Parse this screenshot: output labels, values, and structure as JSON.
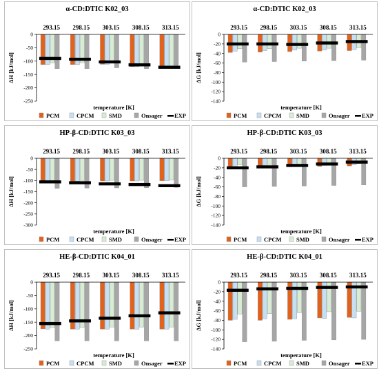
{
  "legend": [
    "PCM",
    "CPCM",
    "SMD",
    "Onsager",
    "EXP"
  ],
  "colors": {
    "PCM": "#e1621c",
    "CPCM": "#c6dff2",
    "SMD": "#d7ecd3",
    "Onsager": "#a6a6a6",
    "EXP": "#000000"
  },
  "chart_data": [
    {
      "type": "bar",
      "title": "α-CD:DTIC K02_03",
      "xlabel": "temperature [K]",
      "ylabel": "ΔH [kJ/mol]",
      "ylim": [
        -250,
        0
      ],
      "yticks": [
        0,
        -50,
        -100,
        -150,
        -200,
        -250
      ],
      "categories": [
        "293.15",
        "298.15",
        "303.15",
        "308.15",
        "313.15"
      ],
      "series": [
        {
          "name": "PCM",
          "values": [
            -113,
            -113,
            -112,
            -121,
            -122
          ]
        },
        {
          "name": "CPCM",
          "values": [
            -113,
            -113,
            -112,
            -121,
            -122
          ]
        },
        {
          "name": "SMD",
          "values": [
            -107,
            -106,
            -106,
            -117,
            -118
          ]
        },
        {
          "name": "Onsager",
          "values": [
            -128,
            -128,
            -125,
            -128,
            -127
          ]
        },
        {
          "name": "EXP",
          "values": [
            -90,
            -93,
            -103,
            -114,
            -123
          ]
        }
      ]
    },
    {
      "type": "bar",
      "title": "α-CD:DTIC K02_03",
      "xlabel": "temperature [K]",
      "ylabel": "ΔG [kJ/mol]",
      "ylim": [
        -140,
        0
      ],
      "yticks": [
        0,
        -20,
        -40,
        -60,
        -80,
        -100,
        -120,
        -140
      ],
      "categories": [
        "293.15",
        "298.15",
        "303.15",
        "308.15",
        "313.15"
      ],
      "series": [
        {
          "name": "PCM",
          "values": [
            -38,
            -37,
            -36,
            -35,
            -34
          ]
        },
        {
          "name": "CPCM",
          "values": [
            -35,
            -34,
            -33,
            -33,
            -32
          ]
        },
        {
          "name": "SMD",
          "values": [
            -30,
            -30,
            -29,
            -29,
            -28
          ]
        },
        {
          "name": "Onsager",
          "values": [
            -58,
            -57,
            -56,
            -55,
            -54
          ]
        },
        {
          "name": "EXP",
          "values": [
            -20,
            -20,
            -21,
            -18,
            -15
          ]
        }
      ]
    },
    {
      "type": "bar",
      "title": "HP-β-CD:DTIC K03_03",
      "xlabel": "temperature [K]",
      "ylabel": "ΔH [kJ/mol]",
      "ylim": [
        -300,
        0
      ],
      "yticks": [
        0,
        -50,
        -100,
        -150,
        -200,
        -250,
        -300
      ],
      "categories": [
        "293.15",
        "298.15",
        "303.15",
        "308.15",
        "313.15"
      ],
      "series": [
        {
          "name": "PCM",
          "values": [
            -103,
            -103,
            -102,
            -102,
            -101
          ]
        },
        {
          "name": "CPCM",
          "values": [
            -103,
            -103,
            -102,
            -102,
            -101
          ]
        },
        {
          "name": "SMD",
          "values": [
            -100,
            -100,
            -99,
            -99,
            -98
          ]
        },
        {
          "name": "Onsager",
          "values": [
            -135,
            -134,
            -133,
            -132,
            -131
          ]
        },
        {
          "name": "EXP",
          "values": [
            -106,
            -110,
            -115,
            -118,
            -123
          ]
        }
      ]
    },
    {
      "type": "bar",
      "title": "HP-β-CD:DTIC K03_03",
      "xlabel": "temperature [K]",
      "ylabel": "ΔG [kJ/mol]",
      "ylim": [
        -140,
        0
      ],
      "yticks": [
        0,
        -20,
        -40,
        -60,
        -80,
        -100,
        -120,
        -140
      ],
      "categories": [
        "293.15",
        "298.15",
        "303.15",
        "308.15",
        "313.15"
      ],
      "series": [
        {
          "name": "PCM",
          "values": [
            -20,
            -19,
            -18,
            -17,
            -16
          ]
        },
        {
          "name": "CPCM",
          "values": [
            -18,
            -17,
            -16,
            -15,
            -14
          ]
        },
        {
          "name": "SMD",
          "values": [
            -14,
            -13,
            -13,
            -12,
            -11
          ]
        },
        {
          "name": "Onsager",
          "values": [
            -60,
            -59,
            -58,
            -57,
            -56
          ]
        },
        {
          "name": "EXP",
          "values": [
            -20,
            -18,
            -15,
            -12,
            -8
          ]
        }
      ]
    },
    {
      "type": "bar",
      "title": "HE-β-CD:DTIC K04_01",
      "xlabel": "temperature [K]",
      "ylabel": "ΔH [kJ/mol]",
      "ylim": [
        -250,
        0
      ],
      "yticks": [
        0,
        -50,
        -100,
        -150,
        -200,
        -250
      ],
      "categories": [
        "293.15",
        "298.15",
        "303.15",
        "308.15",
        "313.15"
      ],
      "series": [
        {
          "name": "PCM",
          "values": [
            -175,
            -176,
            -176,
            -176,
            -176
          ]
        },
        {
          "name": "CPCM",
          "values": [
            -176,
            -176,
            -176,
            -176,
            -176
          ]
        },
        {
          "name": "SMD",
          "values": [
            -170,
            -169,
            -168,
            -168,
            -168
          ]
        },
        {
          "name": "Onsager",
          "values": [
            -220,
            -220,
            -220,
            -220,
            -220
          ]
        },
        {
          "name": "EXP",
          "values": [
            -155,
            -145,
            -135,
            -126,
            -115
          ]
        }
      ]
    },
    {
      "type": "bar",
      "title": "HE-β-CD:DTIC K04_01",
      "xlabel": "temperature [K]",
      "ylabel": "ΔG [kJ/mol]",
      "ylim": [
        -140,
        0
      ],
      "yticks": [
        0,
        -20,
        -40,
        -60,
        -80,
        -100,
        -120,
        -140
      ],
      "categories": [
        "293.15",
        "298.15",
        "303.15",
        "308.15",
        "313.15"
      ],
      "series": [
        {
          "name": "PCM",
          "values": [
            -80,
            -80,
            -78,
            -75,
            -74
          ]
        },
        {
          "name": "CPCM",
          "values": [
            -78,
            -77,
            -77,
            -76,
            -75
          ]
        },
        {
          "name": "SMD",
          "values": [
            -67,
            -66,
            -64,
            -62,
            -61
          ]
        },
        {
          "name": "Onsager",
          "values": [
            -125,
            -124,
            -122,
            -121,
            -120
          ]
        },
        {
          "name": "EXP",
          "values": [
            -17,
            -14,
            -13,
            -11,
            -10
          ]
        }
      ]
    }
  ]
}
